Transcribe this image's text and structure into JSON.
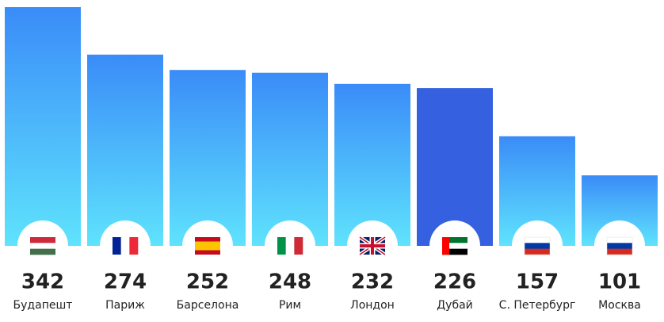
{
  "chart_data": {
    "type": "bar",
    "categories": [
      "Будапешт",
      "Париж",
      "Барселона",
      "Рим",
      "Лондон",
      "Дубай",
      "С. Петербург",
      "Москва"
    ],
    "values": [
      342,
      274,
      252,
      248,
      232,
      226,
      157,
      101
    ],
    "colors": [
      [
        "#3a8cf8",
        "#5fe3fd"
      ],
      [
        "#3a8cf8",
        "#5fe3fd"
      ],
      [
        "#3a8cf8",
        "#5fe3fd"
      ],
      [
        "#3a8cf8",
        "#5fe3fd"
      ],
      [
        "#3a8cf8",
        "#5fe3fd"
      ],
      [
        "#3560e0",
        "#3560e0"
      ],
      [
        "#3a8cf8",
        "#5fe3fd"
      ],
      [
        "#3a8cf8",
        "#5fe3fd"
      ]
    ]
  }
}
